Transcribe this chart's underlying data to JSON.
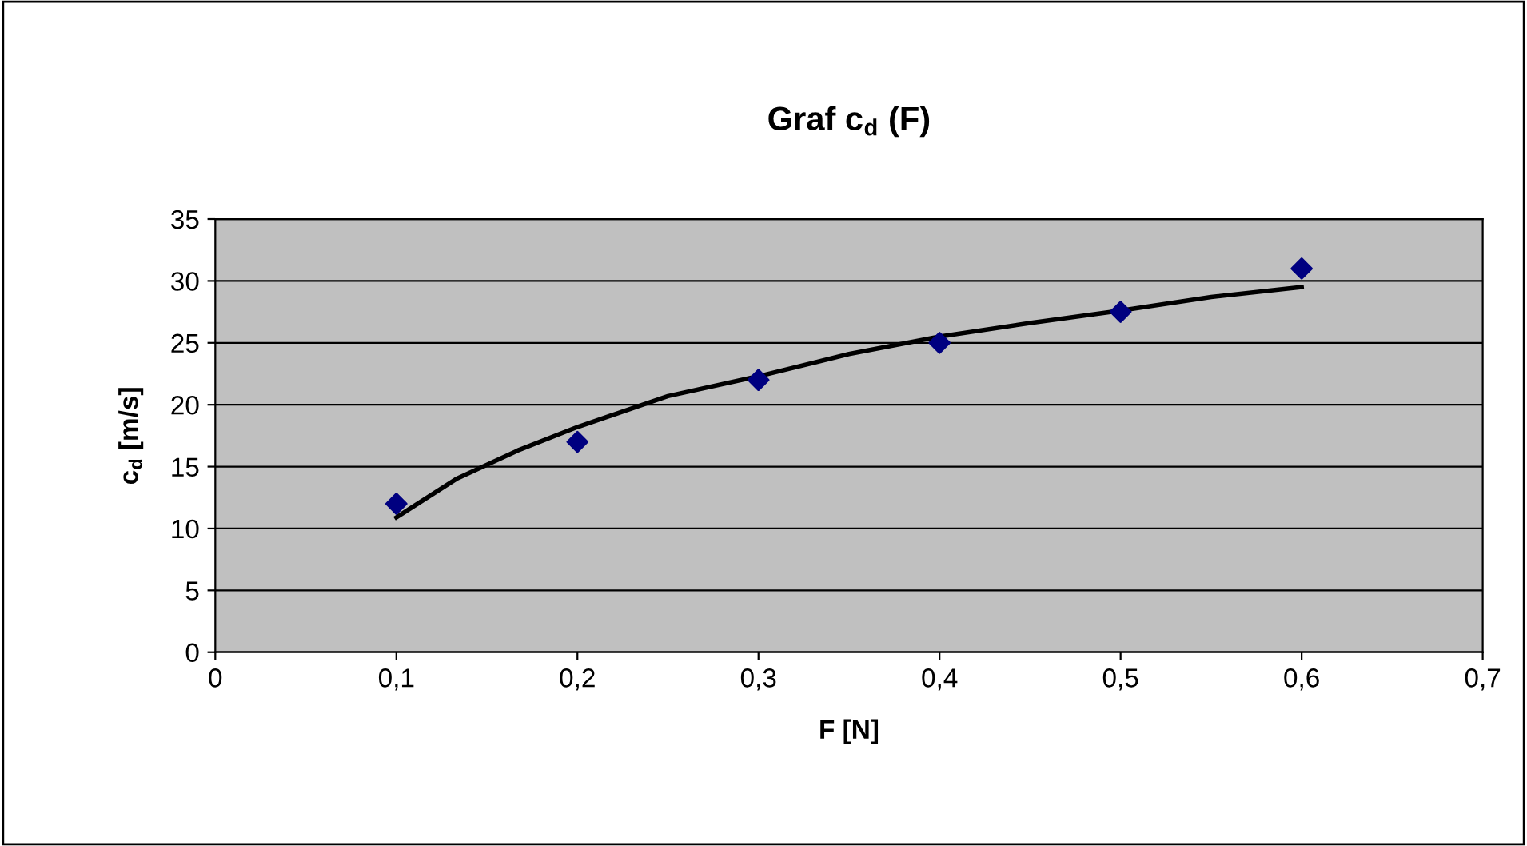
{
  "chart_data": {
    "type": "scatter",
    "title": "Graf c$_{d}$ (F)",
    "xlabel": "F [N]",
    "ylabel": "c$_{d}$ [m/s]",
    "series": [
      {
        "color": "#000080",
        "marker": "diamond",
        "x": [
          0.1,
          0.2,
          0.3,
          0.4,
          0.5,
          0.6
        ],
        "values": [
          12,
          17,
          22,
          25,
          27.5,
          31
        ]
      },
      {
        "type": "line",
        "color": "#000000",
        "marker": "none",
        "line_style": "solid",
        "x": [
          0.1,
          0.133,
          0.167,
          0.2,
          0.25,
          0.3,
          0.35,
          0.4,
          0.45,
          0.5,
          0.55,
          0.6
        ],
        "values": [
          10.9,
          14,
          16.3,
          18.2,
          20.7,
          22.3,
          24.1,
          25.5,
          26.6,
          27.6,
          28.7,
          29.5
        ]
      }
    ],
    "xlim": [
      0,
      0.7
    ],
    "ylim": [
      0,
      35
    ],
    "xticks": [
      0,
      {
        "value": 0.1,
        "label": "0,1"
      },
      {
        "value": 0.2,
        "label": "0,2"
      },
      {
        "value": 0.3,
        "label": "0,3"
      },
      {
        "value": 0.4,
        "label": "0,4"
      },
      {
        "value": 0.5,
        "label": "0,5"
      },
      {
        "value": 0.6,
        "label": "0,6"
      },
      {
        "value": 0.7,
        "label": "0,7"
      }
    ],
    "yticks": [
      0,
      5,
      10,
      15,
      20,
      25,
      30,
      35
    ],
    "grid": "y",
    "legend": false
  }
}
